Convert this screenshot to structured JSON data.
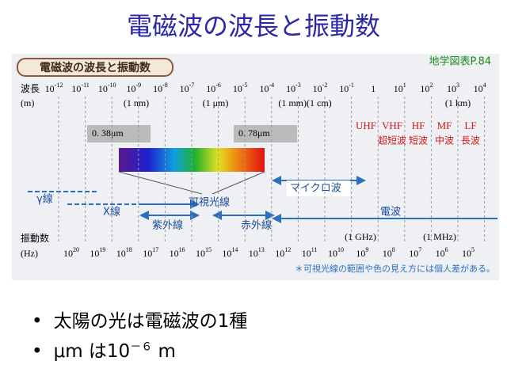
{
  "title": "電磁波の波長と振動数",
  "figure": {
    "header": "電磁波の波長と振動数",
    "source": "地学図表P.84",
    "wavelength_label": "波長",
    "wavelength_unit": "(m)",
    "wavelengths": [
      {
        "base": "10",
        "exp": "-12"
      },
      {
        "base": "10",
        "exp": "-11"
      },
      {
        "base": "10",
        "exp": "-10"
      },
      {
        "base": "10",
        "exp": "-9"
      },
      {
        "base": "10",
        "exp": "-8"
      },
      {
        "base": "10",
        "exp": "-7"
      },
      {
        "base": "10",
        "exp": "-6"
      },
      {
        "base": "10",
        "exp": "-5"
      },
      {
        "base": "10",
        "exp": "-4"
      },
      {
        "base": "10",
        "exp": "-3"
      },
      {
        "base": "10",
        "exp": "-2"
      },
      {
        "base": "10",
        "exp": "-1"
      },
      {
        "base": "1"
      },
      {
        "base": "10",
        "exp": "1"
      },
      {
        "base": "10",
        "exp": "2"
      },
      {
        "base": "10",
        "exp": "3"
      },
      {
        "base": "10",
        "exp": "4"
      }
    ],
    "wavelength_notes": [
      "(1 nm)",
      "(1 μm)",
      "(1 mm)(1 cm)",
      "(1 km)"
    ],
    "frequency_label": "振動数",
    "frequency_unit": "(Hz)",
    "frequencies": [
      "20",
      "19",
      "18",
      "17",
      "16",
      "15",
      "14",
      "13",
      "12",
      "11",
      "10",
      "9",
      "8",
      "7",
      "6",
      "5"
    ],
    "frequency_base": "10",
    "frequency_notes": [
      "(1 GHz)",
      "(1 MHz)"
    ],
    "visible_min": "0. 38μm",
    "visible_max": "0. 78μm",
    "bands": [
      {
        "code": "UHF"
      },
      {
        "code": "VHF",
        "name": "超短波"
      },
      {
        "code": "HF",
        "name": "短波"
      },
      {
        "code": "MF",
        "name": "中波"
      },
      {
        "code": "LF",
        "name": "長波"
      }
    ],
    "regions": {
      "gamma": "γ線",
      "xray": "X線",
      "visible": "可視光線",
      "uv": "紫外線",
      "ir": "赤外線",
      "microwave": "マイクロ波",
      "radio": "電波"
    },
    "note": "＊可視光線の範囲や色の見え方には個人差がある。"
  },
  "bullets": [
    {
      "text": "太陽の光は電磁波の1種"
    },
    {
      "text": "μm は10",
      "sup": "－６",
      "tail": " m"
    }
  ]
}
